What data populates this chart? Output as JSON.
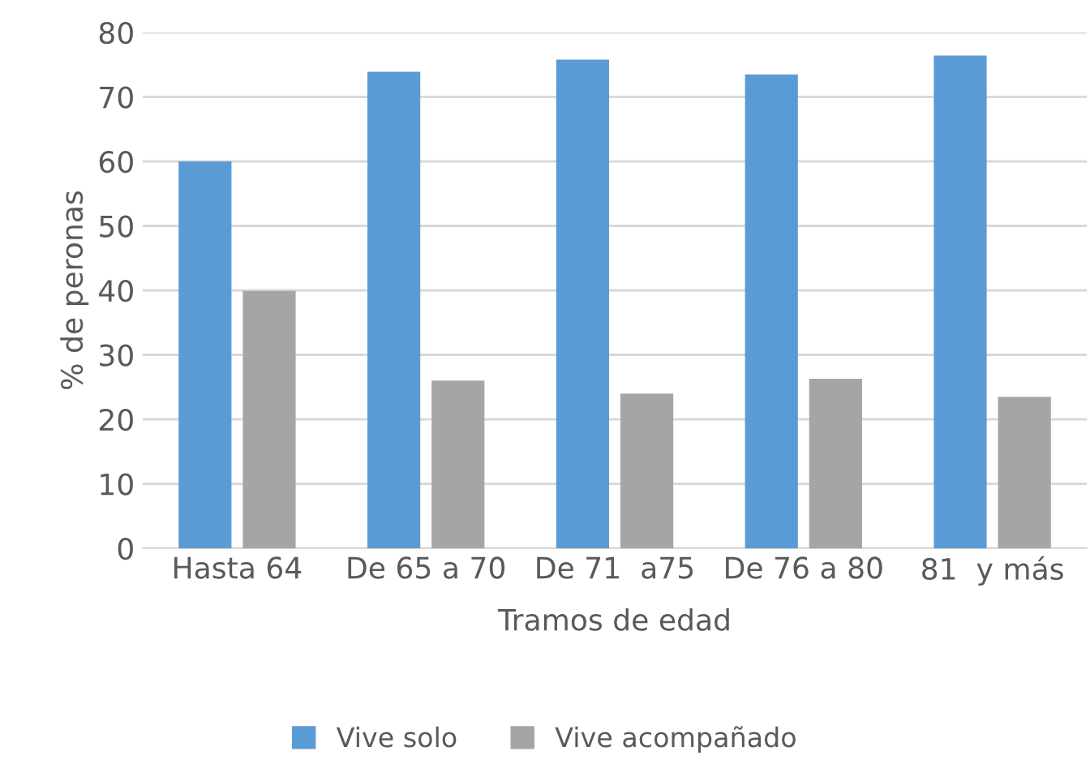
{
  "chart_data": {
    "type": "bar",
    "xlabel": "Tramos de edad",
    "ylabel": "% de peronas",
    "categories": [
      "Hasta 64",
      "De 65 a 70",
      "De 71  a75",
      "De 76 a 80",
      "81  y más"
    ],
    "series": [
      {
        "name": "Vive solo",
        "color": "#5b9bd5",
        "values": [
          60.0,
          73.9,
          75.8,
          73.5,
          76.4
        ]
      },
      {
        "name": "Vive acompañado",
        "color": "#a5a5a5",
        "values": [
          39.9,
          26.0,
          24.0,
          26.3,
          23.5
        ]
      }
    ],
    "ylim": [
      0,
      80
    ],
    "yticks": [
      0,
      10,
      20,
      30,
      40,
      50,
      60,
      70,
      80
    ],
    "grid": "y",
    "legend": "bottom"
  }
}
